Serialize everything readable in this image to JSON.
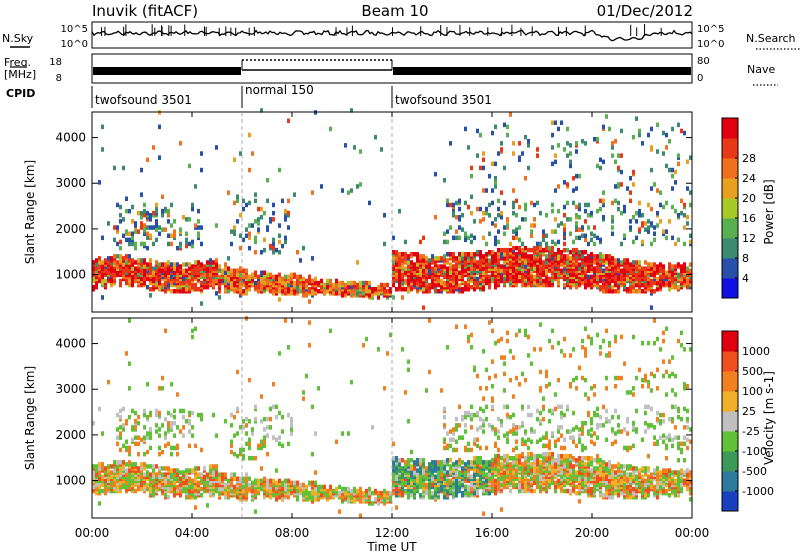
{
  "header": {
    "radar": "Inuvik (fitACF)",
    "beam": "Beam 10",
    "date": "01/Dec/2012"
  },
  "nsky_panel": {
    "left_label": "N.Sky",
    "right_label": "N.Search",
    "left_ticks": [
      "10^5",
      "10^0"
    ],
    "right_ticks": [
      "10^5",
      "10^0"
    ]
  },
  "freq_panel": {
    "left_label_1": "Freq.",
    "left_label_2": "[MHz]",
    "right_label": "Nave",
    "left_ticks": [
      "18",
      "8"
    ],
    "right_ticks": [
      "80",
      "0"
    ]
  },
  "cpid": {
    "label": "CPID",
    "segments": [
      {
        "name": "twofsound 3501",
        "start_h": 0,
        "end_h": 6
      },
      {
        "name": "normal 150",
        "start_h": 6,
        "end_h": 12
      },
      {
        "name": "twofsound 3501",
        "start_h": 12,
        "end_h": 24
      }
    ]
  },
  "x_axis": {
    "label": "Time UT",
    "ticks": [
      "00:00",
      "04:00",
      "08:00",
      "12:00",
      "16:00",
      "20:00",
      "00:00"
    ]
  },
  "chart_data": [
    {
      "type": "heatmap",
      "quantity": "Power",
      "ylabel": "Slant Range [km]",
      "y_ticks": [
        "1000",
        "2000",
        "3000",
        "4000"
      ],
      "ylim": [
        180,
        4560
      ],
      "xlim_hours": [
        0,
        24
      ],
      "colorbar_label": "Power [dB]",
      "colorbar_ticks": [
        "4",
        "8",
        "12",
        "16",
        "20",
        "24",
        "28"
      ],
      "colorbar_colors": [
        "#1010e0",
        "#2850a8",
        "#3c8a70",
        "#58b050",
        "#a8c828",
        "#e8a020",
        "#f07020",
        "#e83818",
        "#e00010"
      ]
    },
    {
      "type": "heatmap",
      "quantity": "Velocity",
      "ylabel": "Slant Range [km]",
      "y_ticks": [
        "1000",
        "2000",
        "3000",
        "4000"
      ],
      "ylim": [
        180,
        4560
      ],
      "xlim_hours": [
        0,
        24
      ],
      "colorbar_label": "Velocity [m s-1]",
      "colorbar_ticks": [
        "1000",
        "500",
        "100",
        "25",
        "-25",
        "-100",
        "-500",
        "-1000"
      ],
      "colorbar_colors": [
        "#1a40c0",
        "#2e7a9a",
        "#3c9a58",
        "#60c038",
        "#c0c0c0",
        "#f0b028",
        "#f08020",
        "#f05020",
        "#e00010"
      ]
    }
  ]
}
